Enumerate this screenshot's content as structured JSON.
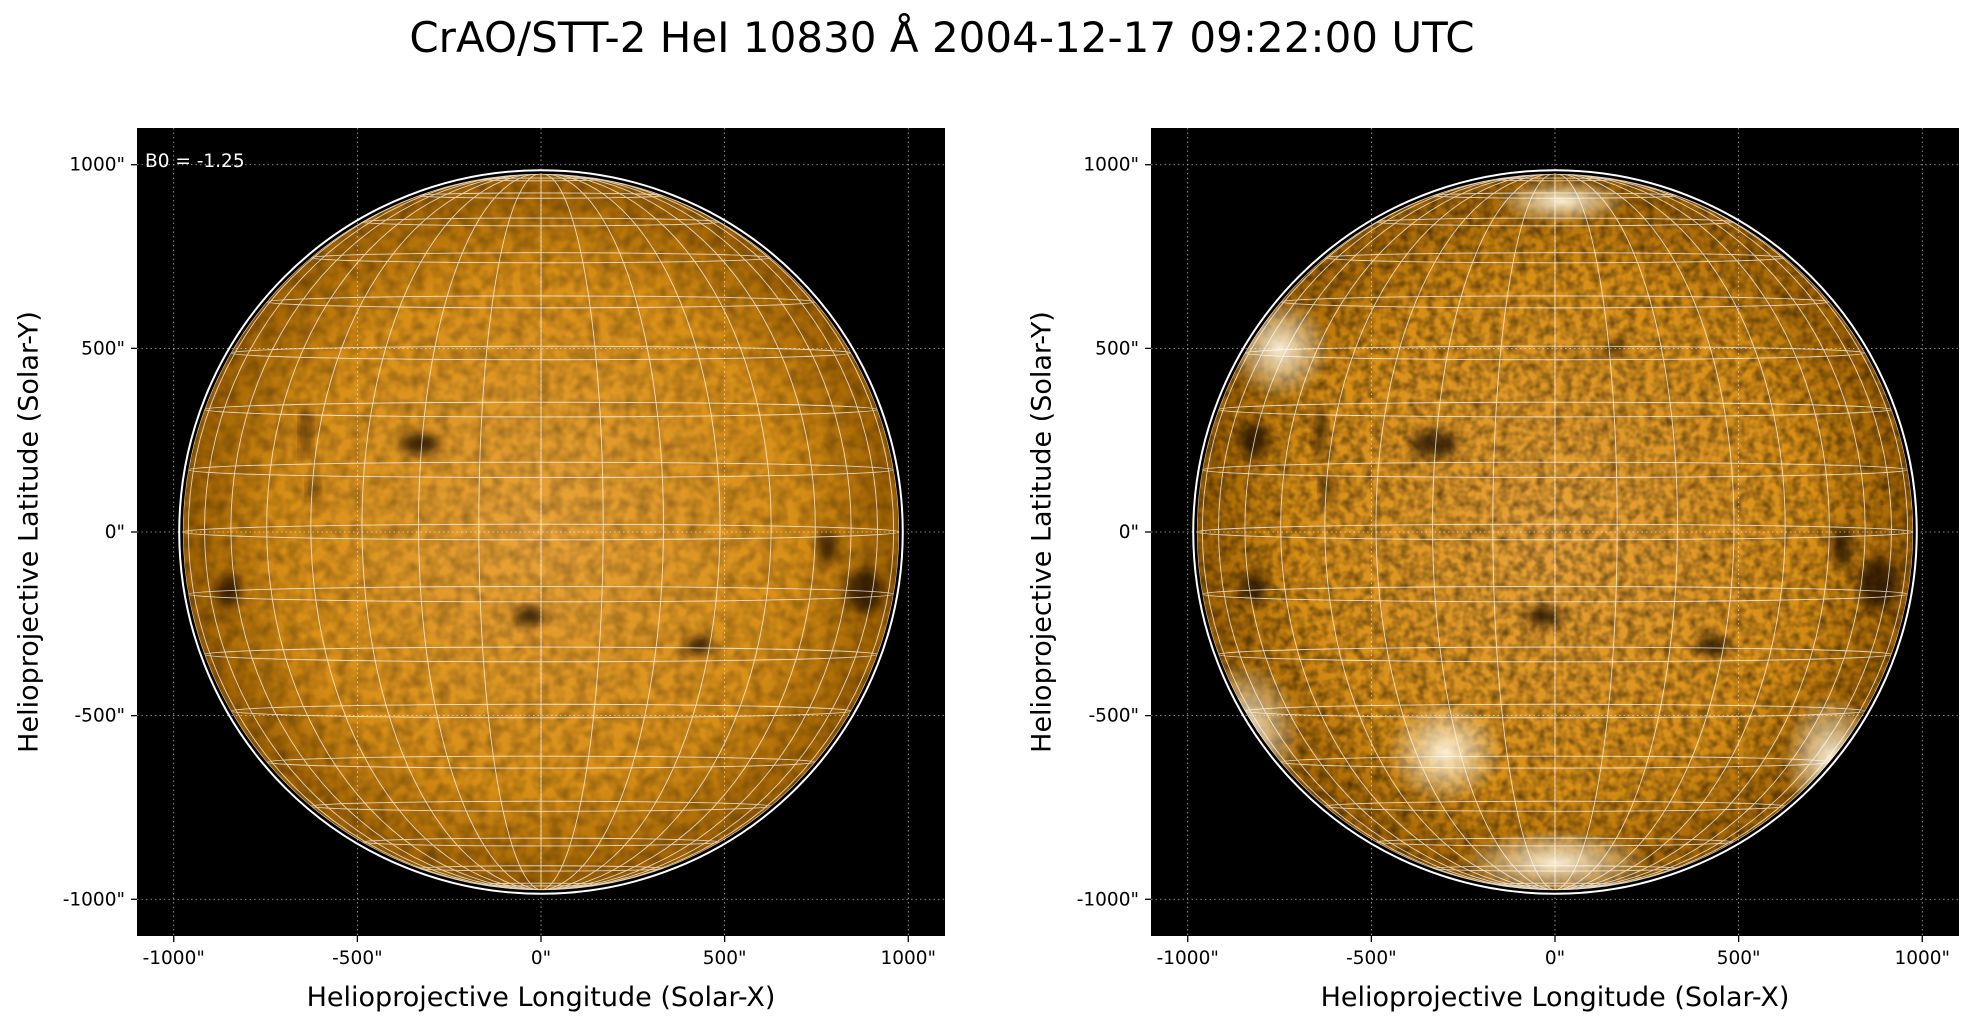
{
  "figure": {
    "title": "CrAO/STT-2 HeI 10830 Å 2004-12-17 09:22:00 UTC"
  },
  "colors": {
    "background": "#000000",
    "disk_center": "#e9a339",
    "disk_mid": "#d88f16",
    "disk_edge": "#9c5f00",
    "limb": "#ffffff",
    "graticule": "#ffffff",
    "tick_grid": "#ffffff",
    "dark_feature": "#1a0c00",
    "bright_region": "#fff4dc"
  },
  "chart_data": [
    {
      "type": "heatmap",
      "name": "left-panel",
      "title": "",
      "xlabel": "Helioprojective Longitude (Solar-X)",
      "ylabel": "Helioprojective Latitude (Solar-Y)",
      "xlim": [
        -1100,
        1100
      ],
      "ylim": [
        -1100,
        1100
      ],
      "x_ticks": [
        -1000,
        -500,
        0,
        500,
        1000
      ],
      "y_ticks": [
        -1000,
        -500,
        0,
        500,
        1000
      ],
      "x_tick_labels": [
        "-1000\"",
        "-500\"",
        "0\"",
        "500\"",
        "1000\""
      ],
      "y_tick_labels": [
        "-1000\"",
        "-500\"",
        "0\"",
        "500\"",
        "1000\""
      ],
      "grid": true,
      "annotation": "B0 = -1.25",
      "solar_radius_arcsec": 975,
      "limb_radius_arcsec": 985,
      "graticule_step_deg": 10,
      "b0_deg": -1.25,
      "dark_features": [
        {
          "x": -640,
          "y": 270,
          "rx": 12,
          "ry": 70
        },
        {
          "x": -620,
          "y": 120,
          "rx": 12,
          "ry": 35
        },
        {
          "x": -330,
          "y": 240,
          "rx": 55,
          "ry": 30
        },
        {
          "x": -850,
          "y": -160,
          "rx": 35,
          "ry": 45
        },
        {
          "x": 780,
          "y": -40,
          "rx": 25,
          "ry": 50
        },
        {
          "x": 880,
          "y": -160,
          "rx": 50,
          "ry": 60
        },
        {
          "x": -30,
          "y": -230,
          "rx": 45,
          "ry": 25
        },
        {
          "x": 430,
          "y": -310,
          "rx": 40,
          "ry": 25
        }
      ]
    },
    {
      "type": "heatmap",
      "name": "right-panel",
      "title": "",
      "xlabel": "Helioprojective Longitude (Solar-X)",
      "ylabel": "Helioprojective Latitude (Solar-Y)",
      "xlim": [
        -1100,
        1100
      ],
      "ylim": [
        -1100,
        1100
      ],
      "x_ticks": [
        -1000,
        -500,
        0,
        500,
        1000
      ],
      "y_ticks": [
        -1000,
        -500,
        0,
        500,
        1000
      ],
      "x_tick_labels": [
        "-1000\"",
        "-500\"",
        "0\"",
        "500\"",
        "1000\""
      ],
      "y_tick_labels": [
        "-1000\"",
        "-500\"",
        "0\"",
        "500\"",
        "1000\""
      ],
      "grid": true,
      "annotation": "",
      "solar_radius_arcsec": 975,
      "limb_radius_arcsec": 985,
      "graticule_step_deg": 10,
      "b0_deg": -1.25,
      "dark_features": [
        {
          "x": -640,
          "y": 270,
          "rx": 14,
          "ry": 75
        },
        {
          "x": -620,
          "y": 120,
          "rx": 14,
          "ry": 40
        },
        {
          "x": -330,
          "y": 240,
          "rx": 65,
          "ry": 35
        },
        {
          "x": -820,
          "y": 250,
          "rx": 40,
          "ry": 50
        },
        {
          "x": -820,
          "y": -150,
          "rx": 35,
          "ry": 45
        },
        {
          "x": 780,
          "y": -40,
          "rx": 28,
          "ry": 55
        },
        {
          "x": 880,
          "y": -140,
          "rx": 55,
          "ry": 70
        },
        {
          "x": -30,
          "y": -230,
          "rx": 50,
          "ry": 28
        },
        {
          "x": 430,
          "y": -310,
          "rx": 45,
          "ry": 28
        },
        {
          "x": 160,
          "y": 500,
          "rx": 30,
          "ry": 20
        }
      ],
      "bright_regions": [
        {
          "x": 0,
          "y": -900,
          "rx": 260,
          "ry": 90
        },
        {
          "x": 20,
          "y": 900,
          "rx": 180,
          "ry": 60
        },
        {
          "x": -750,
          "y": 500,
          "rx": 140,
          "ry": 140
        },
        {
          "x": -850,
          "y": -550,
          "rx": 160,
          "ry": 200
        },
        {
          "x": 750,
          "y": -620,
          "rx": 130,
          "ry": 180
        },
        {
          "x": -300,
          "y": -600,
          "rx": 160,
          "ry": 140
        }
      ]
    }
  ]
}
